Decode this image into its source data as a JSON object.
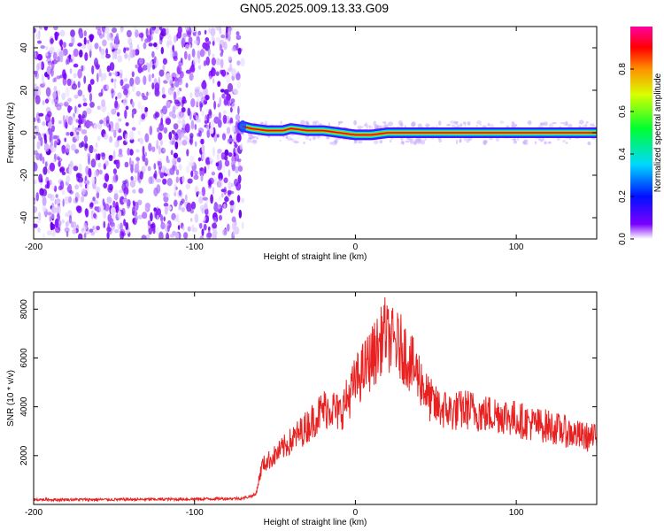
{
  "title": "GN05.2025.009.13.33.G09",
  "chart_data": [
    {
      "type": "heatmap",
      "xlabel": "Height of straight line (km)",
      "ylabel": "Frequency (Hz)",
      "xlim": [
        -200,
        150
      ],
      "ylim": [
        -50,
        50
      ],
      "xticks": [
        -200,
        -100,
        0,
        100
      ],
      "yticks": [
        -40,
        -20,
        0,
        20,
        40
      ],
      "noise_region_x": [
        -200,
        -70
      ],
      "signal_start_x": -70,
      "ridge": [
        {
          "x": -70,
          "y": 3
        },
        {
          "x": -65,
          "y": 2
        },
        {
          "x": -55,
          "y": 1
        },
        {
          "x": -45,
          "y": 1
        },
        {
          "x": -40,
          "y": 2
        },
        {
          "x": -30,
          "y": 1
        },
        {
          "x": -20,
          "y": 1
        },
        {
          "x": -10,
          "y": 0
        },
        {
          "x": 0,
          "y": -1
        },
        {
          "x": 10,
          "y": -1
        },
        {
          "x": 20,
          "y": 0
        },
        {
          "x": 40,
          "y": 0
        },
        {
          "x": 60,
          "y": 0
        },
        {
          "x": 80,
          "y": 0
        },
        {
          "x": 100,
          "y": 0
        },
        {
          "x": 120,
          "y": 0
        },
        {
          "x": 150,
          "y": 0
        }
      ],
      "colorbar": {
        "label": "Normalized spectral amplitude",
        "ticks": [
          "0.0",
          "0.2",
          "0.4",
          "0.6",
          "0.8"
        ],
        "tick_values": [
          0.0,
          0.2,
          0.4,
          0.6,
          0.8
        ],
        "range": [
          0,
          1
        ]
      }
    },
    {
      "type": "line",
      "xlabel": "Height of straight line (km)",
      "ylabel": "SNR (10 * v/v)",
      "xlim": [
        -200,
        150
      ],
      "ylim": [
        0,
        8700
      ],
      "xticks": [
        -200,
        -100,
        0,
        100
      ],
      "yticks": [
        2000,
        4000,
        6000,
        8000
      ],
      "color": "#e82020",
      "series": [
        {
          "x": [
            -200,
            -150,
            -100,
            -70,
            -62,
            -58,
            -50,
            -40,
            -30,
            -20,
            -15,
            -10,
            -5,
            0,
            10,
            15,
            18,
            20,
            25,
            30,
            35,
            40,
            45,
            50,
            60,
            70,
            80,
            90,
            100,
            110,
            120,
            130,
            140,
            150
          ],
          "y": [
            200,
            200,
            220,
            250,
            400,
            1600,
            2000,
            2600,
            3200,
            3900,
            4000,
            3700,
            4300,
            5000,
            6000,
            6500,
            7200,
            6800,
            6600,
            6300,
            5700,
            5200,
            4400,
            4000,
            3800,
            3900,
            3700,
            3700,
            3500,
            3300,
            3200,
            3000,
            2800,
            2700
          ]
        }
      ]
    }
  ]
}
